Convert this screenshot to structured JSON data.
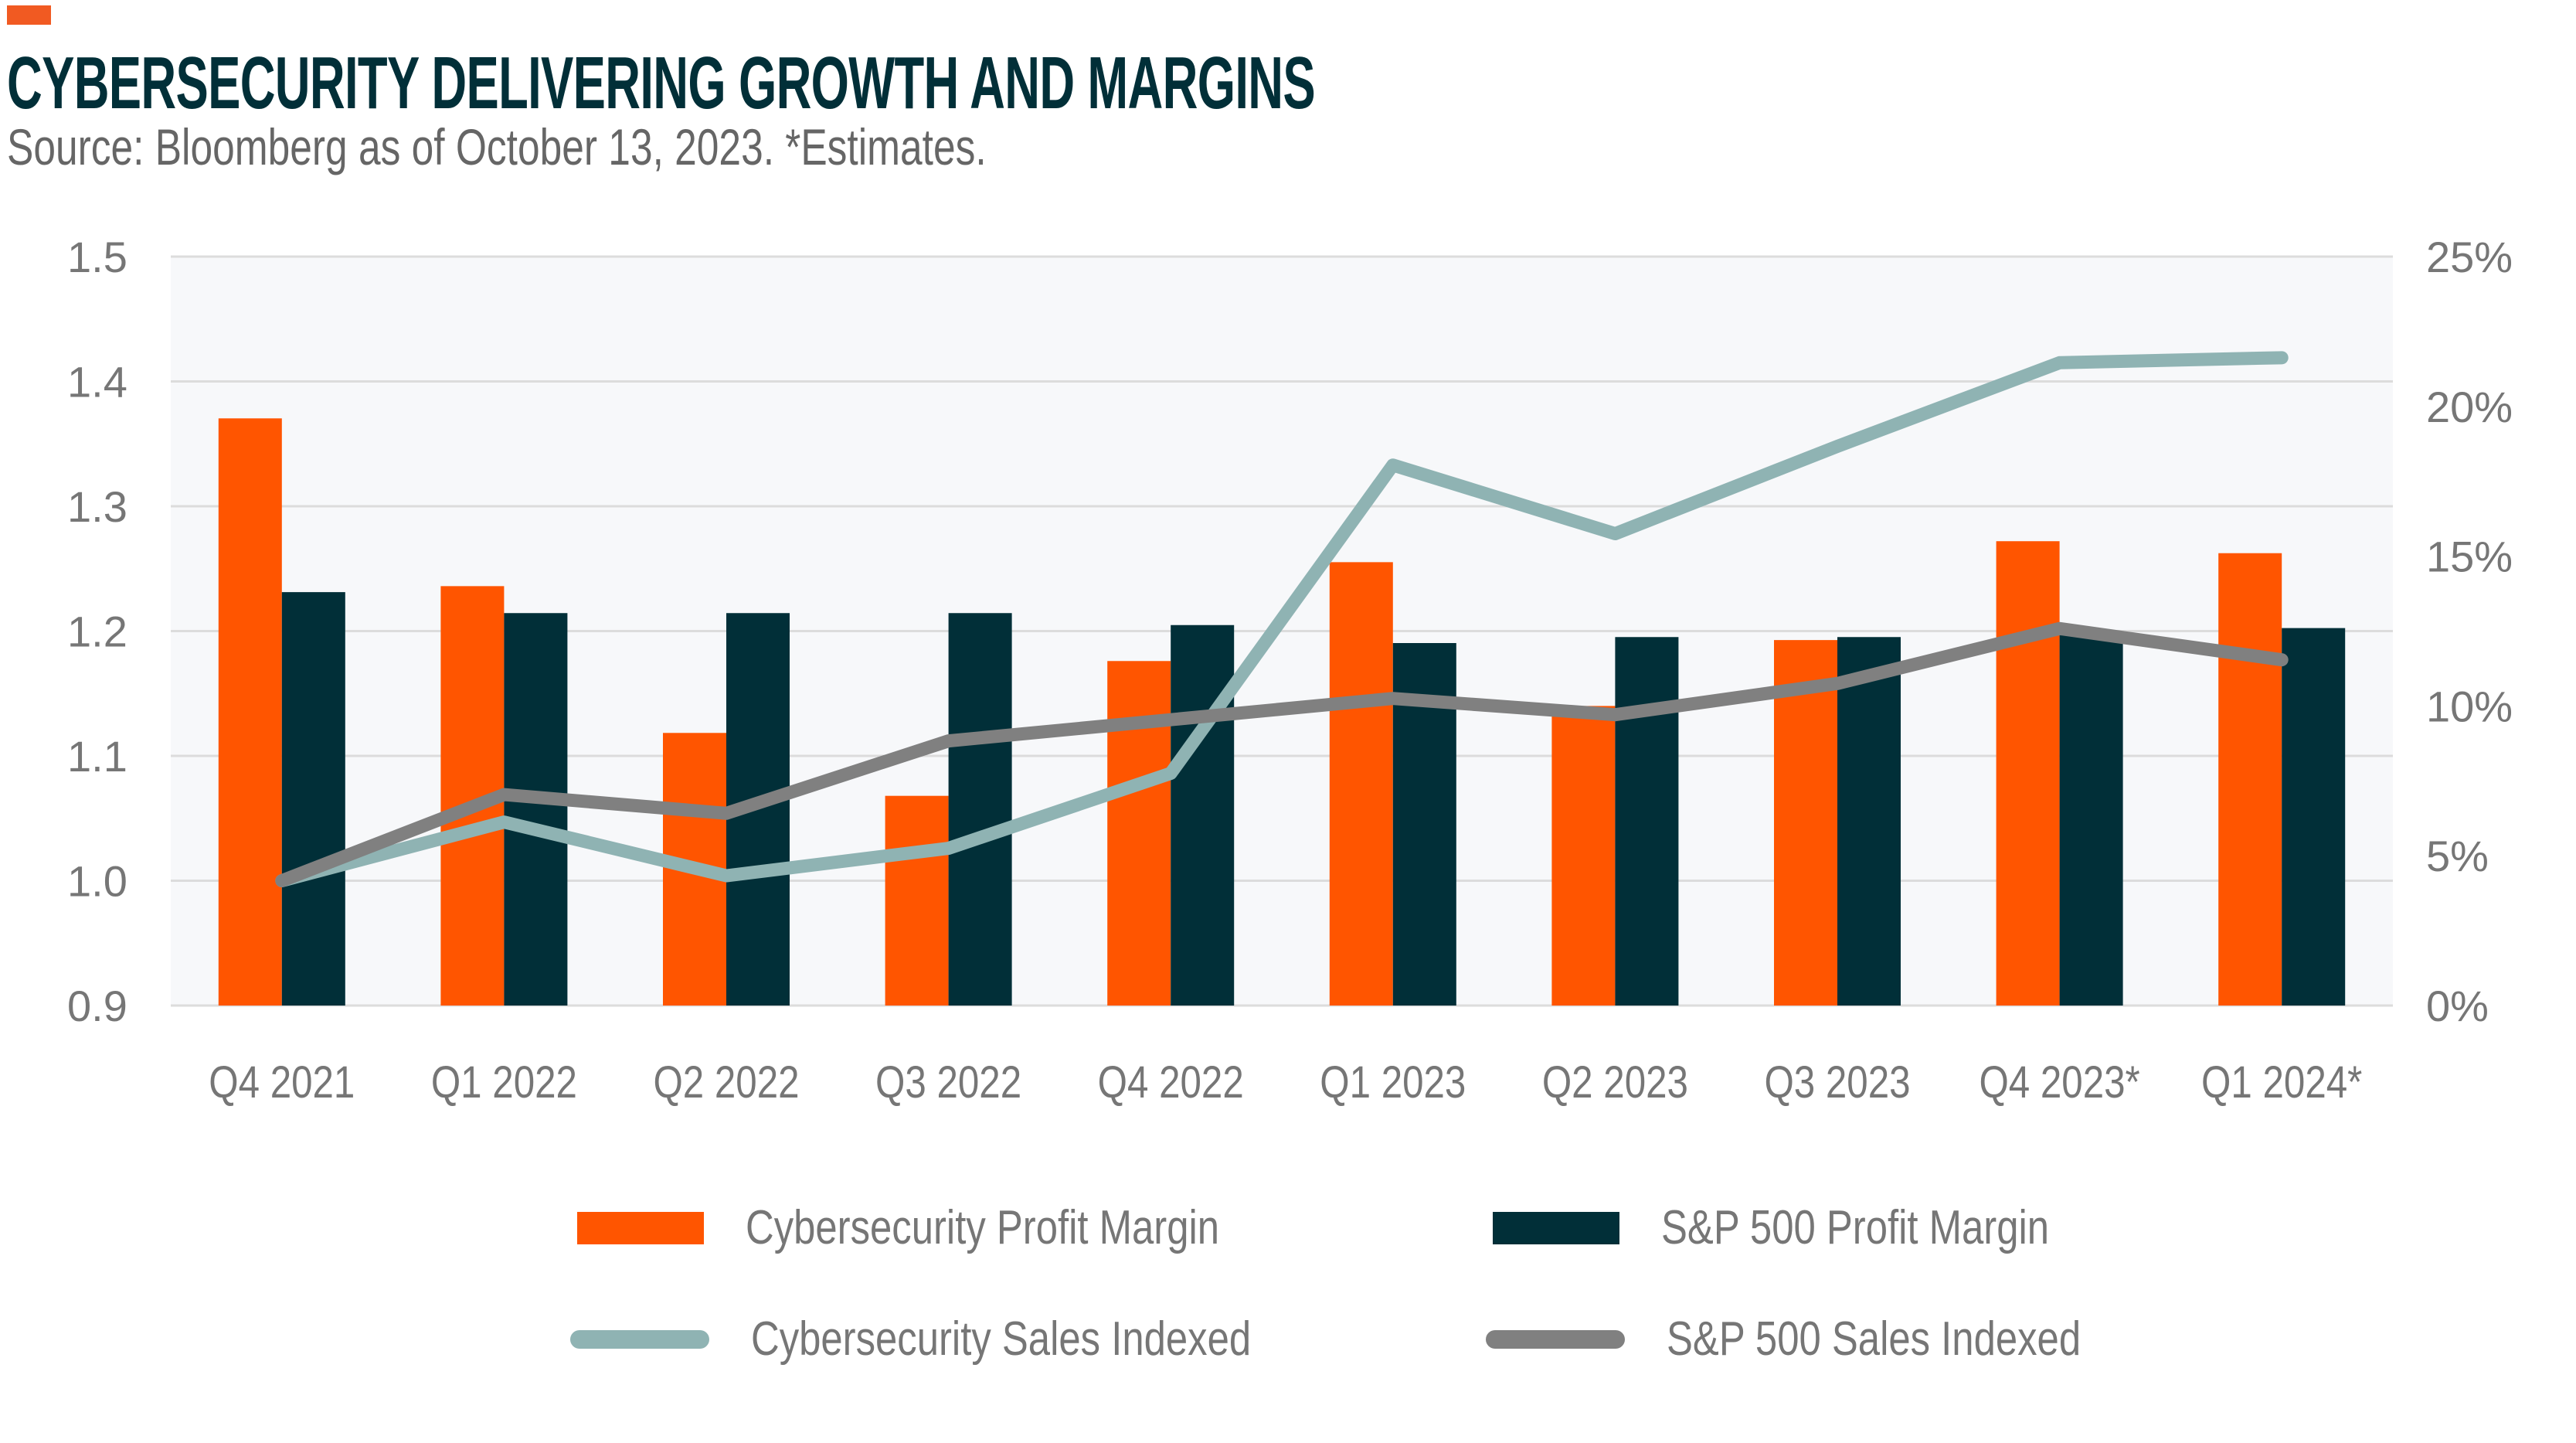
{
  "header": {
    "title": "CYBERSECURITY DELIVERING GROWTH AND MARGINS",
    "subtitle": "Source: Bloomberg as of October 13, 2023. *Estimates."
  },
  "colors": {
    "accent": "#f15a22",
    "cyber_margin": "#ff5500",
    "sp_margin": "#012f38",
    "cyber_sales": "#8fb3b3",
    "sp_sales": "#808080",
    "plot_bg": "#f7f8fa",
    "grid": "#dcdcdc",
    "title": "#012f38",
    "text": "#767676"
  },
  "chart_data": {
    "type": "bar",
    "title": "CYBERSECURITY DELIVERING GROWTH AND MARGINS",
    "subtitle": "Source: Bloomberg as of October 13, 2023. *Estimates.",
    "categories": [
      "Q4 2021",
      "Q1 2022",
      "Q2 2022",
      "Q3 2022",
      "Q4 2022",
      "Q1 2023",
      "Q2 2023",
      "Q3 2023",
      "Q4 2023*",
      "Q1 2024*"
    ],
    "left_axis": {
      "label": "",
      "ylim": [
        0.9,
        1.5
      ],
      "ticks": [
        "0.9",
        "1.0",
        "1.1",
        "1.2",
        "1.3",
        "1.4",
        "1.5"
      ],
      "tick_values": [
        0.9,
        1.0,
        1.1,
        1.2,
        1.3,
        1.4,
        1.5
      ]
    },
    "right_axis": {
      "label": "",
      "ylim": [
        0,
        25
      ],
      "ticks": [
        "0%",
        "5%",
        "10%",
        "15%",
        "20%",
        "25%"
      ],
      "tick_values": [
        0,
        5,
        10,
        15,
        20,
        25
      ]
    },
    "grid": true,
    "series": [
      {
        "name": "Cybersecurity Profit Margin",
        "type": "bar",
        "axis": "right",
        "unit": "%",
        "values": [
          19.6,
          14.0,
          9.1,
          7.0,
          11.5,
          14.8,
          10.0,
          12.2,
          15.5,
          15.1
        ]
      },
      {
        "name": "S&P 500 Profit Margin",
        "type": "bar",
        "axis": "right",
        "unit": "%",
        "values": [
          13.8,
          13.1,
          13.1,
          13.1,
          12.7,
          12.1,
          12.3,
          12.3,
          12.4,
          12.6
        ]
      },
      {
        "name": "Cybersecurity Sales Indexed",
        "type": "line",
        "axis": "left",
        "values": [
          1.0,
          1.047,
          1.004,
          1.026,
          1.086,
          1.333,
          1.278,
          1.348,
          1.415,
          1.419
        ]
      },
      {
        "name": "S&P 500 Sales Indexed",
        "type": "line",
        "axis": "left",
        "values": [
          1.0,
          1.069,
          1.054,
          1.112,
          1.129,
          1.146,
          1.133,
          1.158,
          1.202,
          1.177
        ]
      }
    ],
    "legend_position": "bottom"
  }
}
